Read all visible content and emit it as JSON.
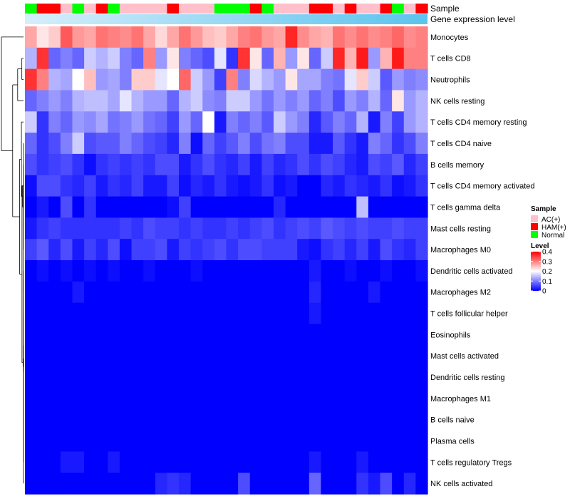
{
  "chart_data": {
    "type": "heatmap",
    "title": "",
    "row_labels": [
      "Monocytes",
      "T cells CD8",
      "Neutrophils",
      "NK cells resting",
      "T cells CD4 memory resting",
      "T cells CD4 naive",
      "B cells memory",
      "T cells CD4 memory activated",
      "T cells gamma delta",
      "Mast cells resting",
      "Macrophages M0",
      "Dendritic cells activated",
      "Macrophages M2",
      "T cells follicular helper",
      "Eosinophils",
      "Mast cells activated",
      "Dendritic cells resting",
      "Macrophages M1",
      "B cells naive",
      "Plasma cells",
      "T cells regulatory  Tregs",
      "NK cells activated"
    ],
    "column_annotations": [
      {
        "name": "Sample",
        "values": [
          "Normal",
          "HAM(+)",
          "HAM(+)",
          "AC(+)",
          "Normal",
          "AC(+)",
          "HAM(+)",
          "Normal",
          "AC(+)",
          "AC(+)",
          "AC(+)",
          "AC(+)",
          "HAM(+)",
          "AC(+)",
          "AC(+)",
          "AC(+)",
          "Normal",
          "Normal",
          "Normal",
          "HAM(+)",
          "Normal",
          "AC(+)",
          "AC(+)",
          "AC(+)",
          "HAM(+)",
          "HAM(+)",
          "AC(+)",
          "HAM(+)",
          "AC(+)",
          "AC(+)",
          "HAM(+)",
          "Normal",
          "AC(+)",
          "HAM(+)"
        ]
      },
      {
        "name": "Gene expression level",
        "gradient": [
          "#d6eefa",
          "#5bc3ee"
        ]
      }
    ],
    "legend": {
      "sample_title": "Sample",
      "sample_items": [
        {
          "label": "AC(+)",
          "color": "#ffc0cb"
        },
        {
          "label": "HAM(+)",
          "color": "#ff0000"
        },
        {
          "label": "Normal",
          "color": "#00ff00"
        }
      ],
      "level_title": "Level",
      "level_ticks": [
        0.4,
        0.3,
        0.2,
        0.1,
        0
      ],
      "level_tick_labels": [
        "0.4",
        "0.3",
        "0.2",
        "0.1",
        "0"
      ],
      "level_range": [
        0,
        0.4
      ]
    },
    "colors": {
      "low": "#0000ff",
      "mid": "#ffffff",
      "high": "#ff0000"
    },
    "row_means": [
      0.3,
      0.18,
      0.16,
      0.1,
      0.07,
      0.05,
      0.04,
      0.02,
      0.006,
      0.05,
      0.04,
      0.004,
      0.004,
      0.001,
      0,
      0,
      0,
      0,
      0,
      0,
      0.004,
      0.006
    ],
    "values": [
      [
        0.27,
        0.22,
        0.24,
        0.33,
        0.28,
        0.27,
        0.31,
        0.3,
        0.29,
        0.31,
        0.27,
        0.23,
        0.27,
        0.31,
        0.28,
        0.25,
        0.24,
        0.27,
        0.3,
        0.31,
        0.28,
        0.27,
        0.37,
        0.29,
        0.27,
        0.26,
        0.31,
        0.29,
        0.31,
        0.29,
        0.3,
        0.32,
        0.29,
        0.3
      ],
      [
        0.14,
        0.36,
        0.08,
        0.1,
        0.08,
        0.16,
        0.14,
        0.16,
        0.1,
        0.08,
        0.3,
        0.12,
        0.22,
        0.1,
        0.08,
        0.06,
        0.18,
        0.04,
        0.36,
        0.22,
        0.08,
        0.26,
        0.12,
        0.22,
        0.08,
        0.16,
        0.37,
        0.26,
        0.38,
        0.12,
        0.26,
        0.38,
        0.3,
        0.3
      ],
      [
        0.36,
        0.3,
        0.14,
        0.13,
        0.2,
        0.25,
        0.12,
        0.13,
        0.1,
        0.24,
        0.24,
        0.18,
        0.2,
        0.32,
        0.16,
        0.12,
        0.05,
        0.3,
        0.1,
        0.17,
        0.14,
        0.12,
        0.22,
        0.13,
        0.13,
        0.1,
        0.09,
        0.18,
        0.24,
        0.16,
        0.07,
        0.12,
        0.1,
        0.11
      ],
      [
        0.08,
        0.1,
        0.12,
        0.1,
        0.14,
        0.15,
        0.15,
        0.13,
        0.18,
        0.14,
        0.12,
        0.12,
        0.08,
        0.14,
        0.16,
        0.11,
        0.1,
        0.16,
        0.16,
        0.12,
        0.09,
        0.12,
        0.1,
        0.12,
        0.08,
        0.1,
        0.06,
        0.12,
        0.1,
        0.14,
        0.08,
        0.22,
        0.12,
        0.14
      ],
      [
        0.16,
        0.04,
        0.1,
        0.08,
        0.12,
        0.11,
        0.13,
        0.09,
        0.1,
        0.12,
        0.09,
        0.08,
        0.05,
        0.12,
        0.08,
        0.2,
        0.02,
        0.1,
        0.08,
        0.1,
        0.07,
        0.16,
        0.12,
        0.1,
        0.03,
        0.07,
        0.1,
        0.08,
        0.14,
        0.02,
        0.1,
        0.05,
        0.12,
        0.14
      ],
      [
        0.08,
        0.04,
        0.06,
        0.1,
        0.16,
        0.06,
        0.07,
        0.07,
        0.1,
        0.08,
        0.06,
        0.05,
        0.03,
        0.1,
        0.01,
        0.08,
        0.05,
        0.07,
        0.1,
        0.06,
        0.09,
        0.1,
        0.06,
        0.06,
        0.02,
        0.02,
        0.07,
        0.04,
        0.02,
        0.1,
        0.08,
        0.04,
        0.06,
        0.1
      ],
      [
        0.06,
        0.04,
        0.05,
        0.06,
        0.04,
        0.01,
        0.04,
        0.05,
        0.04,
        0.05,
        0.04,
        0.06,
        0.06,
        0.02,
        0.04,
        0.06,
        0.04,
        0.03,
        0.05,
        0.02,
        0.05,
        0.03,
        0.04,
        0.06,
        0.04,
        0.06,
        0.05,
        0.03,
        0.02,
        0.06,
        0.05,
        0.07,
        0.03,
        0.05
      ],
      [
        0.01,
        0.06,
        0.06,
        0.04,
        0.03,
        0.05,
        0.02,
        0.04,
        0.03,
        0.05,
        0.02,
        0.02,
        0.05,
        0.01,
        0.03,
        0.02,
        0.04,
        0.02,
        0.01,
        0.02,
        0.04,
        0.01,
        0.02,
        0.0,
        0.0,
        0.03,
        0.02,
        0.04,
        0.03,
        0.02,
        0.04,
        0.01,
        0.02,
        0.04
      ],
      [
        0.0,
        0.02,
        0.0,
        0.06,
        0.0,
        0.04,
        0.0,
        0.0,
        0.0,
        0.0,
        0.0,
        0.0,
        0.01,
        0.05,
        0.0,
        0.0,
        0.0,
        0.0,
        0.0,
        0.0,
        0.0,
        0.03,
        0.0,
        0.0,
        0.0,
        0.0,
        0.0,
        0.0,
        0.15,
        0.0,
        0.0,
        0.0,
        0.0,
        0.0
      ],
      [
        0.02,
        0.04,
        0.05,
        0.04,
        0.04,
        0.04,
        0.04,
        0.04,
        0.05,
        0.04,
        0.06,
        0.05,
        0.05,
        0.04,
        0.05,
        0.04,
        0.04,
        0.05,
        0.04,
        0.05,
        0.06,
        0.04,
        0.05,
        0.06,
        0.05,
        0.07,
        0.06,
        0.05,
        0.06,
        0.05,
        0.05,
        0.06,
        0.05,
        0.05
      ],
      [
        0.05,
        0.07,
        0.03,
        0.06,
        0.02,
        0.05,
        0.03,
        0.06,
        0.01,
        0.05,
        0.05,
        0.06,
        0.02,
        0.05,
        0.04,
        0.05,
        0.06,
        0.04,
        0.06,
        0.06,
        0.05,
        0.05,
        0.05,
        0.02,
        0.01,
        0.04,
        0.05,
        0.03,
        0.05,
        0.02,
        0.06,
        0.04,
        0.03,
        0.05
      ],
      [
        0.0,
        0.01,
        0.0,
        0.01,
        0.0,
        0.01,
        0.0,
        0.01,
        0.0,
        0.0,
        0.01,
        0.0,
        0.0,
        0.0,
        0.01,
        0.0,
        0.0,
        0.0,
        0.0,
        0.0,
        0.0,
        0.0,
        0.0,
        0.0,
        0.02,
        0.0,
        0.0,
        0.01,
        0.0,
        0.0,
        0.01,
        0.0,
        0.0,
        0.01
      ],
      [
        0.0,
        0.0,
        0.0,
        0.0,
        0.02,
        0.0,
        0.0,
        0.0,
        0.0,
        0.0,
        0.0,
        0.0,
        0.0,
        0.0,
        0.0,
        0.0,
        0.0,
        0.0,
        0.0,
        0.0,
        0.0,
        0.0,
        0.0,
        0.0,
        0.03,
        0.0,
        0.0,
        0.0,
        0.0,
        0.02,
        0.0,
        0.0,
        0.0,
        0.0
      ],
      [
        0.0,
        0.0,
        0.0,
        0.0,
        0.0,
        0.0,
        0.0,
        0.0,
        0.0,
        0.0,
        0.0,
        0.0,
        0.0,
        0.0,
        0.0,
        0.0,
        0.0,
        0.0,
        0.0,
        0.0,
        0.0,
        0.0,
        0.0,
        0.0,
        0.02,
        0.0,
        0.0,
        0.0,
        0.0,
        0.0,
        0.0,
        0.0,
        0.0,
        0.0
      ],
      [
        0,
        0,
        0,
        0,
        0,
        0,
        0,
        0,
        0,
        0,
        0,
        0,
        0,
        0,
        0,
        0,
        0,
        0,
        0,
        0,
        0,
        0,
        0,
        0,
        0,
        0,
        0,
        0,
        0,
        0,
        0,
        0,
        0,
        0
      ],
      [
        0,
        0,
        0,
        0,
        0,
        0,
        0,
        0,
        0,
        0,
        0,
        0,
        0,
        0,
        0,
        0,
        0,
        0,
        0,
        0,
        0,
        0,
        0,
        0,
        0,
        0,
        0,
        0,
        0,
        0,
        0,
        0,
        0,
        0
      ],
      [
        0,
        0,
        0,
        0,
        0,
        0,
        0,
        0,
        0,
        0,
        0,
        0,
        0,
        0,
        0,
        0,
        0,
        0,
        0,
        0,
        0,
        0,
        0,
        0,
        0,
        0,
        0,
        0,
        0,
        0,
        0,
        0,
        0,
        0
      ],
      [
        0,
        0,
        0,
        0,
        0,
        0,
        0,
        0,
        0,
        0,
        0,
        0,
        0,
        0,
        0,
        0,
        0,
        0,
        0,
        0,
        0,
        0,
        0,
        0,
        0,
        0,
        0,
        0,
        0,
        0,
        0,
        0,
        0,
        0
      ],
      [
        0,
        0,
        0,
        0,
        0,
        0,
        0,
        0,
        0,
        0,
        0,
        0,
        0,
        0,
        0,
        0,
        0,
        0,
        0,
        0,
        0,
        0,
        0,
        0,
        0,
        0,
        0,
        0,
        0,
        0,
        0,
        0,
        0,
        0
      ],
      [
        0,
        0,
        0,
        0,
        0,
        0,
        0,
        0,
        0,
        0,
        0,
        0,
        0,
        0,
        0,
        0,
        0,
        0,
        0,
        0,
        0,
        0,
        0,
        0,
        0,
        0,
        0,
        0,
        0,
        0,
        0,
        0,
        0,
        0
      ],
      [
        0.0,
        0.0,
        0.0,
        0.02,
        0.02,
        0.0,
        0.0,
        0.02,
        0.0,
        0.0,
        0.0,
        0.0,
        0.0,
        0.0,
        0.0,
        0.0,
        0.0,
        0.0,
        0.0,
        0.0,
        0.0,
        0.0,
        0.0,
        0.0,
        0.02,
        0.0,
        0.0,
        0.0,
        0.02,
        0.0,
        0.0,
        0.0,
        0.0,
        0.0
      ],
      [
        0.0,
        0.0,
        0.0,
        0.0,
        0.0,
        0.0,
        0.0,
        0.0,
        0.0,
        0.0,
        0.0,
        0.03,
        0.04,
        0.03,
        0.0,
        0.0,
        0.0,
        0.0,
        0.06,
        0.0,
        0.0,
        0.0,
        0.0,
        0.0,
        0.08,
        0.0,
        0.0,
        0.0,
        0.04,
        0.02,
        0.06,
        0.0,
        0.03,
        0.0
      ]
    ]
  }
}
